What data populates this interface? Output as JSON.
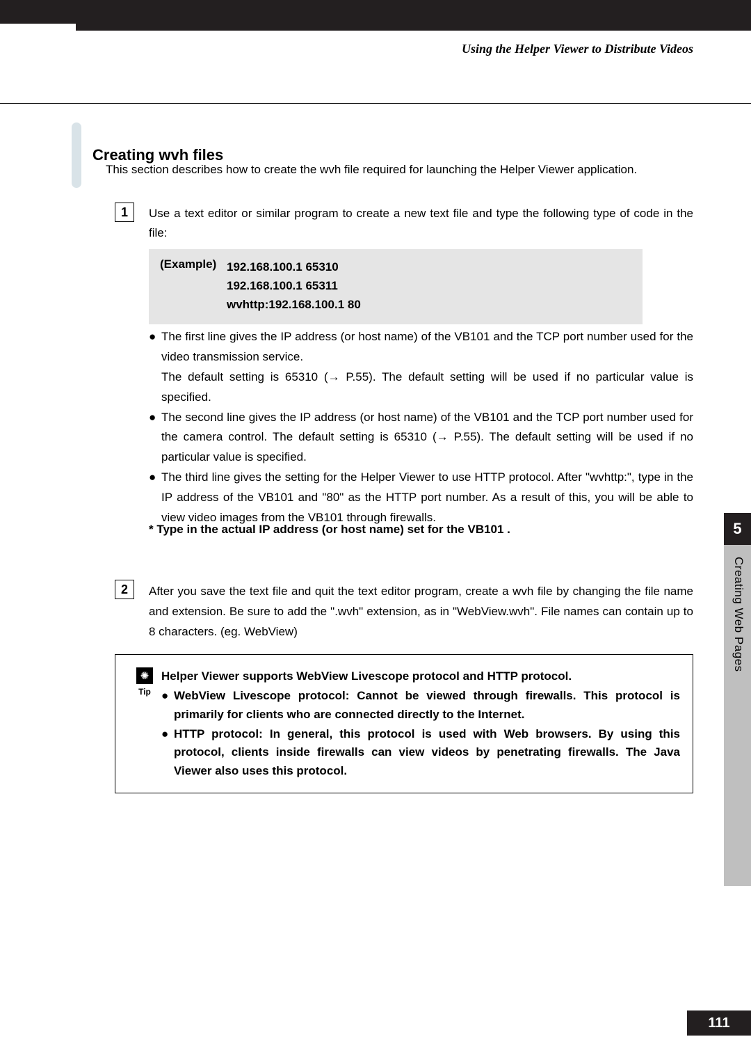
{
  "header": {
    "section": "Using the Helper Viewer to Distribute Videos"
  },
  "title": "Creating wvh files",
  "intro": "This section describes how to create the wvh file required for launching the Helper Viewer application.",
  "step1": {
    "num": "1",
    "text": "Use a text editor or similar program to create a new text file and type the following type of code in the file:"
  },
  "example": {
    "label": "(Example)",
    "line1": "192.168.100.1 65310",
    "line2": "192.168.100.1 65311",
    "line3": "wvhttp:192.168.100.1 80"
  },
  "bullets": {
    "b1a": "The first line gives the IP address (or host name) of the VB101 and the TCP port number used for the video transmission service.",
    "b1b": "The default setting is 65310 (→ P.55). The default setting will be used if no particular value is specified.",
    "b2": "The second line gives the IP address (or host name) of the VB101 and the TCP port number used for the camera control. The default setting is 65310 (→ P.55). The default setting will be used if no particular value is specified.",
    "b3": "The third line gives the setting for the Helper Viewer to use HTTP protocol. After \"wvhttp:\", type in the IP address of the VB101 and \"80\" as the HTTP port number. As a result of this, you will be able to view video images from the VB101 through firewalls."
  },
  "note": "* Type in the actual IP address (or host name) set for the VB101 .",
  "step2": {
    "num": "2",
    "text": "After you save the text file and quit the text editor program, create a wvh file by changing the file name and extension. Be sure to add the \".wvh\" extension, as in \"WebView.wvh\". File names can contain up to 8 characters. (eg. WebView)"
  },
  "tip": {
    "label": "Tip",
    "intro": "Helper Viewer supports WebView Livescope protocol and HTTP protocol.",
    "b1": "WebView Livescope protocol: Cannot be viewed through firewalls. This protocol is primarily for clients who are connected directly to the Internet.",
    "b2": "HTTP protocol: In general, this protocol is used with Web browsers. By using this protocol, clients inside firewalls can view videos by penetrating firewalls. The Java Viewer also uses this protocol."
  },
  "side": {
    "chapter": "5",
    "label": "Creating Web Pages"
  },
  "pageNumber": "111",
  "colors": {
    "dark": "#231f20",
    "gray": "#bfbfbf",
    "lightblue": "#d9e3e8",
    "examplebg": "#e5e5e5"
  }
}
